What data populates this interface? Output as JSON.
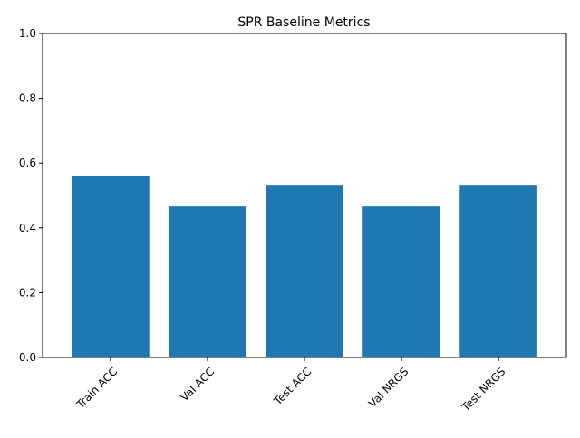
{
  "chart_data": {
    "type": "bar",
    "title": "SPR Baseline Metrics",
    "xlabel": "",
    "ylabel": "",
    "categories": [
      "Train ACC",
      "Val ACC",
      "Test ACC",
      "Val NRGS",
      "Test NRGS"
    ],
    "values": [
      0.56,
      0.466,
      0.533,
      0.466,
      0.533
    ],
    "ylim": [
      0,
      1.0
    ],
    "yticks": [
      "0.0",
      "0.2",
      "0.4",
      "0.6",
      "0.8",
      "1.0"
    ],
    "bar_color": "#1f77b4",
    "grid": false,
    "legend": "none",
    "xtick_rotation": "45°"
  }
}
